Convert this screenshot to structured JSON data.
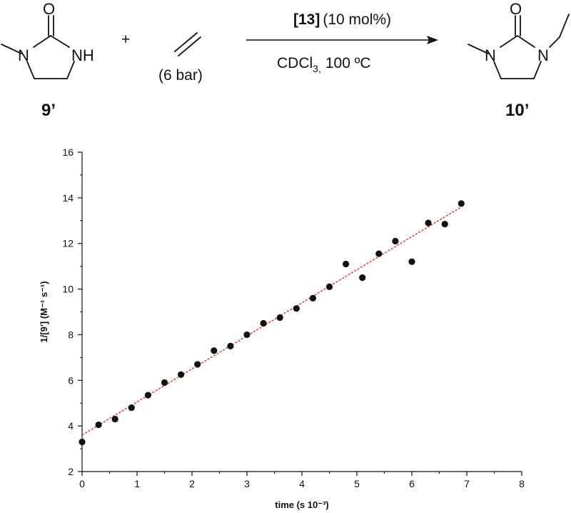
{
  "scheme": {
    "reactant_label": "9’",
    "product_label": "10’",
    "plus": "+",
    "pressure": "(6 bar)",
    "catalyst_ref": "[13]",
    "catalyst_loading": "(10 mol%)",
    "solvent_main": "CDCl",
    "solvent_sub": "3,",
    "temperature": "100 ºC",
    "atoms": {
      "O": "O",
      "N": "N",
      "NH": "NH"
    }
  },
  "chart_data": {
    "type": "scatter",
    "title": "",
    "xlabel": "time (s 10⁻³)",
    "ylabel": "1/[9'] (M⁻¹ s⁻¹)",
    "xlim": [
      0,
      8
    ],
    "ylim": [
      2,
      16
    ],
    "x_ticks": [
      0,
      1,
      2,
      3,
      4,
      5,
      6,
      7,
      8
    ],
    "y_ticks": [
      2,
      4,
      6,
      8,
      10,
      12,
      14,
      16
    ],
    "grid": false,
    "legend": "none",
    "series": [
      {
        "x": [
          0,
          0.3,
          0.6,
          0.9,
          1.2,
          1.5,
          1.8,
          2.1,
          2.4,
          2.7,
          3.0,
          3.3,
          3.6,
          3.9,
          4.2,
          4.5,
          4.8,
          5.1,
          5.4,
          5.7,
          6.0,
          6.3,
          6.6,
          6.9
        ],
        "y": [
          3.3,
          4.05,
          4.3,
          4.8,
          5.35,
          5.9,
          6.25,
          6.7,
          7.3,
          7.5,
          8.0,
          8.5,
          8.75,
          9.15,
          9.6,
          10.1,
          11.1,
          10.5,
          11.55,
          12.1,
          11.2,
          12.9,
          12.85,
          13.75
        ],
        "color": "#111111"
      }
    ],
    "fit_line": {
      "x": [
        0,
        6.9
      ],
      "y": [
        3.6,
        13.6
      ],
      "color": "#e02020",
      "style": "dashed"
    }
  }
}
